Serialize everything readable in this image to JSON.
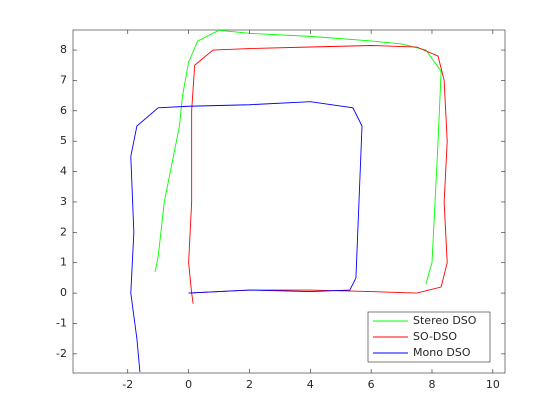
{
  "chart_data": {
    "type": "line",
    "xlim": [
      -3.8,
      10.4
    ],
    "ylim": [
      -2.63,
      8.66
    ],
    "xticks": [
      -2,
      0,
      2,
      4,
      6,
      8,
      10
    ],
    "yticks": [
      -2,
      -1,
      0,
      1,
      2,
      3,
      4,
      5,
      6,
      7,
      8
    ],
    "legend_location": "southeast",
    "series": [
      {
        "name": "Stereo DSO",
        "color": "#00ff00",
        "x": [
          -1.1,
          -1.0,
          -0.8,
          -0.5,
          -0.3,
          -0.2,
          0.0,
          0.3,
          1.0,
          2.0,
          4.0,
          6.0,
          7.0,
          7.8,
          8.3,
          8.2,
          8.1,
          8.0,
          7.8
        ],
        "values": [
          0.7,
          1.2,
          3.0,
          4.5,
          5.5,
          6.5,
          7.6,
          8.3,
          8.65,
          8.55,
          8.45,
          8.3,
          8.2,
          8.0,
          7.3,
          5.0,
          3.0,
          1.0,
          0.3
        ]
      },
      {
        "name": "SO-DSO",
        "color": "#ff0000",
        "x": [
          0.15,
          0.1,
          0.0,
          0.1,
          0.1,
          0.2,
          0.8,
          2.0,
          4.0,
          6.0,
          7.5,
          8.2,
          8.4,
          8.5,
          8.4,
          8.5,
          8.3,
          7.5,
          6.0,
          4.0,
          2.0,
          0.0
        ],
        "values": [
          -0.35,
          0.0,
          1.0,
          3.0,
          6.0,
          7.5,
          8.0,
          8.05,
          8.1,
          8.15,
          8.1,
          7.8,
          7.0,
          5.0,
          3.0,
          1.0,
          0.2,
          0.0,
          0.05,
          0.1,
          0.1,
          0.0
        ]
      },
      {
        "name": "Mono DSO",
        "color": "#0000ff",
        "x": [
          0.0,
          2.0,
          4.0,
          5.3,
          5.5,
          5.6,
          5.7,
          5.4,
          4.0,
          2.0,
          0.0,
          -1.0,
          -1.7,
          -1.9,
          -1.8,
          -1.9,
          -1.7,
          -1.6
        ],
        "values": [
          0.0,
          0.1,
          0.05,
          0.1,
          0.5,
          3.0,
          5.5,
          6.1,
          6.3,
          6.2,
          6.15,
          6.1,
          5.5,
          4.5,
          2.0,
          0.0,
          -1.5,
          -2.6
        ]
      }
    ]
  }
}
